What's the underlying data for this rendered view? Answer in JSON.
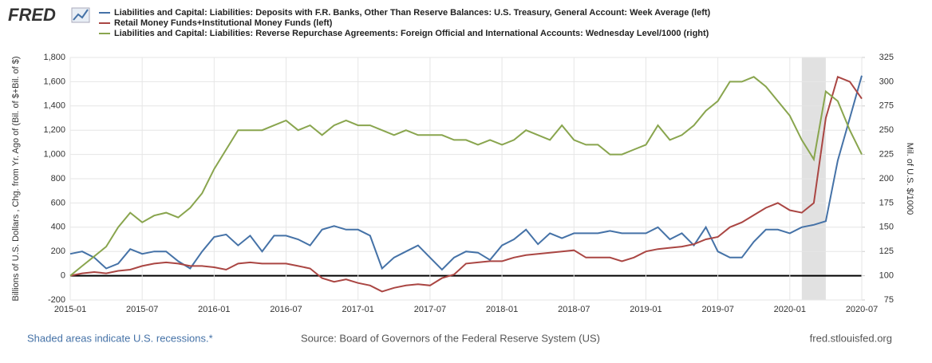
{
  "chart_data": {
    "type": "line",
    "logo": "FRED",
    "x": [
      "2015-01",
      "2015-02",
      "2015-03",
      "2015-04",
      "2015-05",
      "2015-06",
      "2015-07",
      "2015-08",
      "2015-09",
      "2015-10",
      "2015-11",
      "2015-12",
      "2016-01",
      "2016-02",
      "2016-03",
      "2016-04",
      "2016-05",
      "2016-06",
      "2016-07",
      "2016-08",
      "2016-09",
      "2016-10",
      "2016-11",
      "2016-12",
      "2017-01",
      "2017-02",
      "2017-03",
      "2017-04",
      "2017-05",
      "2017-06",
      "2017-07",
      "2017-08",
      "2017-09",
      "2017-10",
      "2017-11",
      "2017-12",
      "2018-01",
      "2018-02",
      "2018-03",
      "2018-04",
      "2018-05",
      "2018-06",
      "2018-07",
      "2018-08",
      "2018-09",
      "2018-10",
      "2018-11",
      "2018-12",
      "2019-01",
      "2019-02",
      "2019-03",
      "2019-04",
      "2019-05",
      "2019-06",
      "2019-07",
      "2019-08",
      "2019-09",
      "2019-10",
      "2019-11",
      "2019-12",
      "2020-01",
      "2020-02",
      "2020-03",
      "2020-04",
      "2020-05",
      "2020-06",
      "2020-07"
    ],
    "series": [
      {
        "name": "Liabilities and Capital: Liabilities: Deposits with F.R. Banks, Other Than Reserve Balances: U.S. Treasury, General Account: Week Average (left)",
        "color": "#4572a7",
        "axis": "y",
        "values": [
          180,
          200,
          150,
          60,
          100,
          220,
          180,
          200,
          200,
          120,
          60,
          200,
          320,
          340,
          250,
          330,
          200,
          330,
          330,
          300,
          250,
          380,
          410,
          380,
          380,
          330,
          60,
          150,
          200,
          250,
          150,
          50,
          150,
          200,
          190,
          130,
          250,
          300,
          380,
          260,
          350,
          310,
          350,
          350,
          350,
          370,
          350,
          350,
          350,
          400,
          300,
          350,
          250,
          400,
          200,
          150,
          150,
          280,
          380,
          380,
          350,
          400,
          420,
          450,
          950,
          1300,
          1650
        ]
      },
      {
        "name": "Retail Money Funds+Institutional Money Funds (left)",
        "color": "#aa4643",
        "axis": "y",
        "values": [
          0,
          20,
          30,
          20,
          40,
          50,
          80,
          100,
          110,
          100,
          80,
          80,
          70,
          50,
          100,
          110,
          100,
          100,
          100,
          80,
          60,
          -20,
          -50,
          -30,
          -60,
          -80,
          -130,
          -100,
          -80,
          -70,
          -80,
          -20,
          10,
          100,
          110,
          120,
          120,
          150,
          170,
          180,
          190,
          200,
          210,
          150,
          150,
          150,
          120,
          150,
          200,
          220,
          230,
          240,
          260,
          300,
          320,
          400,
          440,
          500,
          560,
          600,
          540,
          520,
          600,
          1300,
          1640,
          1600,
          1460
        ]
      },
      {
        "name": "Liabilities and Capital: Liabilities: Reverse Repurchase Agreements: Foreign Official and International Accounts: Wednesday Level/1000 (right)",
        "color": "#89a54e",
        "axis": "y2",
        "values": [
          100,
          110,
          120,
          130,
          150,
          165,
          155,
          162,
          165,
          160,
          170,
          185,
          210,
          230,
          250,
          250,
          250,
          255,
          260,
          250,
          255,
          245,
          255,
          260,
          255,
          255,
          250,
          245,
          250,
          245,
          245,
          245,
          240,
          240,
          235,
          240,
          235,
          240,
          250,
          245,
          240,
          255,
          240,
          235,
          235,
          225,
          225,
          230,
          235,
          255,
          240,
          245,
          255,
          270,
          280,
          300,
          300,
          305,
          295,
          280,
          265,
          240,
          220,
          290,
          280,
          250,
          225
        ]
      }
    ],
    "xlim": [
      "2015-01",
      "2020-07"
    ],
    "xticks": [
      "2015-01",
      "2015-07",
      "2016-01",
      "2016-07",
      "2017-01",
      "2017-07",
      "2018-01",
      "2018-07",
      "2019-01",
      "2019-07",
      "2020-01",
      "2020-07"
    ],
    "ylim": [
      -200,
      1800
    ],
    "yticks": [
      -200,
      0,
      {
        "value": 200,
        "label": "200"
      },
      400,
      600,
      800,
      {
        "value": 1000,
        "label": "1,000"
      },
      {
        "value": 1200,
        "label": "1,200"
      },
      {
        "value": 1400,
        "label": "1,400"
      },
      {
        "value": 1600,
        "label": "1,600"
      },
      {
        "value": 1800,
        "label": "1,800"
      }
    ],
    "y2lim": [
      75,
      325
    ],
    "y2ticks": [
      75,
      100,
      125,
      150,
      175,
      200,
      225,
      250,
      275,
      300,
      325
    ],
    "ylabel": "Billions of U.S. Dollars , Chg. from Yr. Ago of (Bil. of $+Bil. of $)",
    "y2label": "Mil. of U.S. $/1000",
    "grid": true,
    "recessions": [
      [
        "2020-02",
        "2020-04"
      ]
    ],
    "recession_note": "Shaded areas indicate U.S. recessions.*",
    "source": "Source: Board of Governors of the Federal Reserve System (US)",
    "site": "fred.stlouisfed.org"
  }
}
